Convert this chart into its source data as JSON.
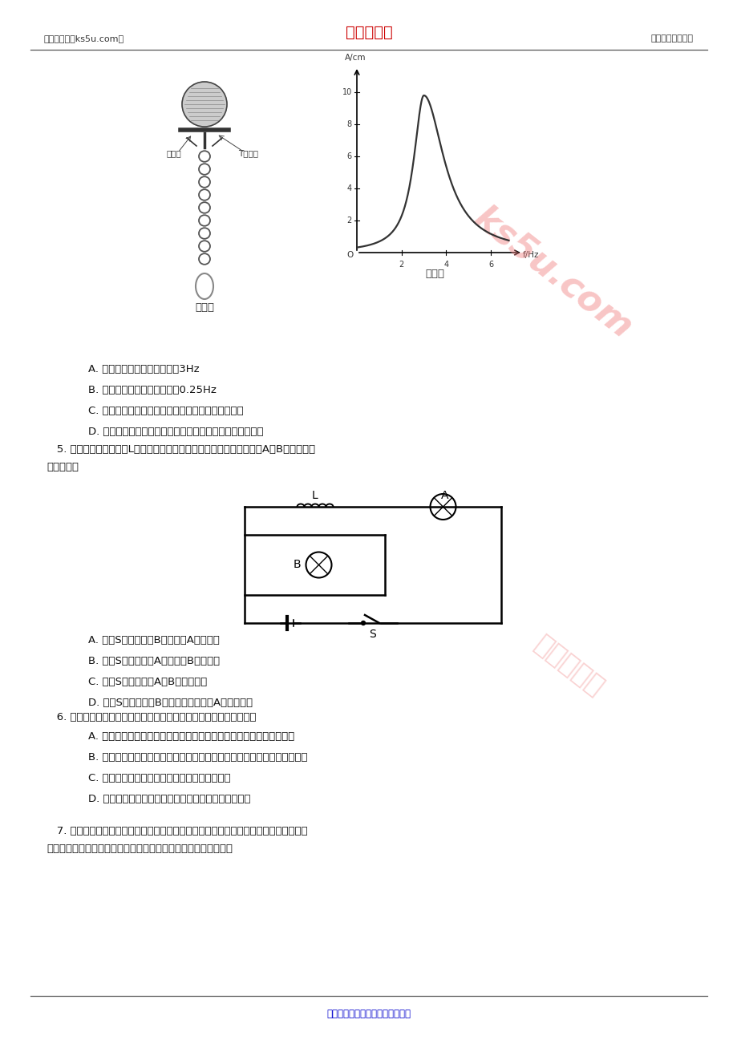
{
  "page_width": 9.2,
  "page_height": 13.02,
  "dpi": 100,
  "bg_color": "#ffffff",
  "header_left": "高考资源网（ks5u.com）",
  "header_center": "高考资源网",
  "header_right": "您身边的高考专家",
  "header_center_color": "#cc0000",
  "header_text_color": "#333333",
  "footer_text": "高考资源网版权所有，侵权必究！",
  "footer_color": "#0000cc",
  "line_color": "#555555",
  "text_color": "#111111",
  "options_A_q4": "A. 此振动系统的固有频率约为3Hz",
  "options_B_q4": "B. 此振动系统的固有频率约为0.25Hz",
  "options_C_q4": "C. 若圆盘匀速转动的周期增大，系统的振动频率不变",
  "options_D_q4": "D. 若圆盘匀速转动的周期增大，共振曲线的峰值将向右移动",
  "q5_line1": "   5. 如图所示，电感线圈L的自感系数足够大，其直流电阻可忽略不计，A、B是两个相同",
  "q5_line2": "的灯泡，则",
  "options_A_q5": "A. 电键S闭合瞬间，B灯先亮，A灯逐渐亮",
  "options_B_q5": "B. 电键S闭合瞬间，A灯先亮，B灯逐渐亮",
  "options_C_q5": "C. 电键S断开瞬间，A、B灯同时熄灭",
  "options_D_q5": "D. 电键S断开瞬间，B灯亮一下才熄灭，A灯立即熄灭",
  "q6_text": "   6. 光在生产和生活、科学技术中有着广泛的应用，下列说法正确的是",
  "options_A_q6": "A. 用透明的标准平面样板检查光学平面的平整程度是利用光的衍射现象",
  "options_B_q6": "B. 在照相机镜头前加装偏振滤光片拍摄日落时水面下的景物，可使景像清晰",
  "options_C_q6": "C. 在光导纤维束内传送图像是利用光的色散现象",
  "options_D_q6": "D. 太阳光通过三棱镜形成彩色光谱，这是光的干涉现象",
  "q7_line1": "   7. 一轻质横杆两侧各固定一轻质铝环，横杆能绕中心点自由转动，左环是断开的，右环",
  "q7_line2": "是闭合的。现用一条形磁铁插向其中一个小环，能观察到的现象是",
  "watermark1_text": "ks5u.com",
  "watermark2_text": "高考资源网",
  "wm_color": "#f08080",
  "wm_alpha": 0.45
}
